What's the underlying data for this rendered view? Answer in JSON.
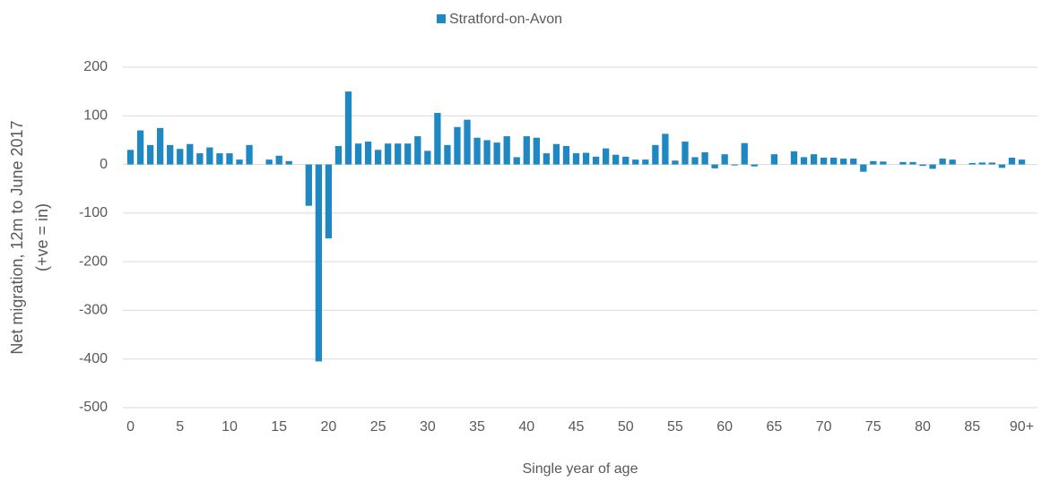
{
  "chart_data": {
    "type": "bar",
    "x_label": "Single year of age",
    "y_label": [
      "Net migration, 12m to June 2017",
      "(+ve = in)"
    ],
    "categories": [
      "0",
      null,
      null,
      null,
      null,
      "5",
      null,
      null,
      null,
      null,
      "10",
      null,
      null,
      null,
      null,
      "15",
      null,
      null,
      null,
      null,
      "20",
      null,
      null,
      null,
      null,
      "25",
      null,
      null,
      null,
      null,
      "30",
      null,
      null,
      null,
      null,
      "35",
      null,
      null,
      null,
      null,
      "40",
      null,
      null,
      null,
      null,
      "45",
      null,
      null,
      null,
      null,
      "50",
      null,
      null,
      null,
      null,
      "55",
      null,
      null,
      null,
      null,
      "60",
      null,
      null,
      null,
      null,
      "65",
      null,
      null,
      null,
      null,
      "70",
      null,
      null,
      null,
      null,
      "75",
      null,
      null,
      null,
      null,
      "80",
      null,
      null,
      null,
      null,
      "85",
      null,
      null,
      null,
      null,
      "90+"
    ],
    "series": [
      {
        "name": "Stratford-on-Avon",
        "color": "#1f88c3",
        "values": [
          30,
          70,
          40,
          75,
          40,
          32,
          42,
          23,
          35,
          23,
          23,
          10,
          40,
          0,
          10,
          18,
          7,
          0,
          -85,
          -405,
          -152,
          38,
          150,
          43,
          47,
          30,
          43,
          43,
          43,
          58,
          28,
          106,
          40,
          77,
          92,
          55,
          50,
          45,
          58,
          15,
          58,
          55,
          23,
          42,
          38,
          23,
          24,
          16,
          33,
          20,
          16,
          10,
          10,
          40,
          63,
          8,
          47,
          15,
          25,
          -8,
          21,
          -2,
          44,
          -4,
          0,
          21,
          0,
          27,
          15,
          21,
          14,
          14,
          12,
          12,
          -15,
          7,
          6,
          0,
          5,
          5,
          -3,
          -9,
          12,
          10,
          0,
          3,
          4,
          4,
          -7,
          14,
          10
        ]
      }
    ],
    "ylim": [
      -500,
      200
    ],
    "yticks": [
      -500,
      -400,
      -300,
      -200,
      -100,
      0,
      100,
      200
    ],
    "grid": true,
    "legend": "top"
  }
}
